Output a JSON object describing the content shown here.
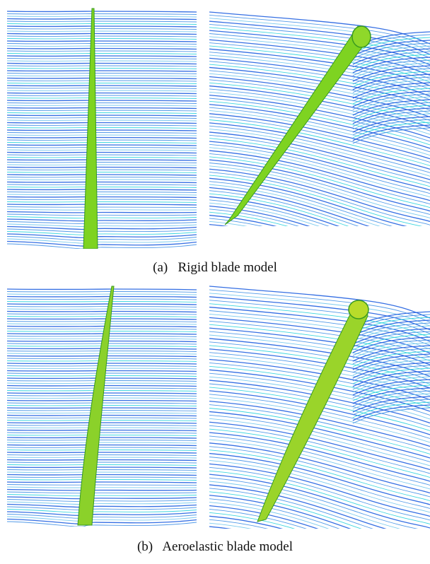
{
  "figure": {
    "captions": {
      "a": "(a)   Rigid blade model",
      "b": "(b)   Aeroelastic blade model"
    },
    "panels": [
      {
        "id": "a-front",
        "view": "front",
        "blade": "rigid"
      },
      {
        "id": "a-oblique",
        "view": "oblique",
        "blade": "rigid"
      },
      {
        "id": "b-front",
        "view": "front",
        "blade": "aeroelastic"
      },
      {
        "id": "b-oblique",
        "view": "oblique",
        "blade": "aeroelastic"
      }
    ],
    "colors": {
      "streamline_dark": "#1f5fe0",
      "streamline_mid": "#3f8fe6",
      "streamline_light": "#6cc4ec",
      "streamline_cyan": "#28d2dc",
      "blade_green": "#7ed321",
      "blade_yellow": "#c9d82e",
      "blade_edge": "#3a9a20"
    }
  }
}
